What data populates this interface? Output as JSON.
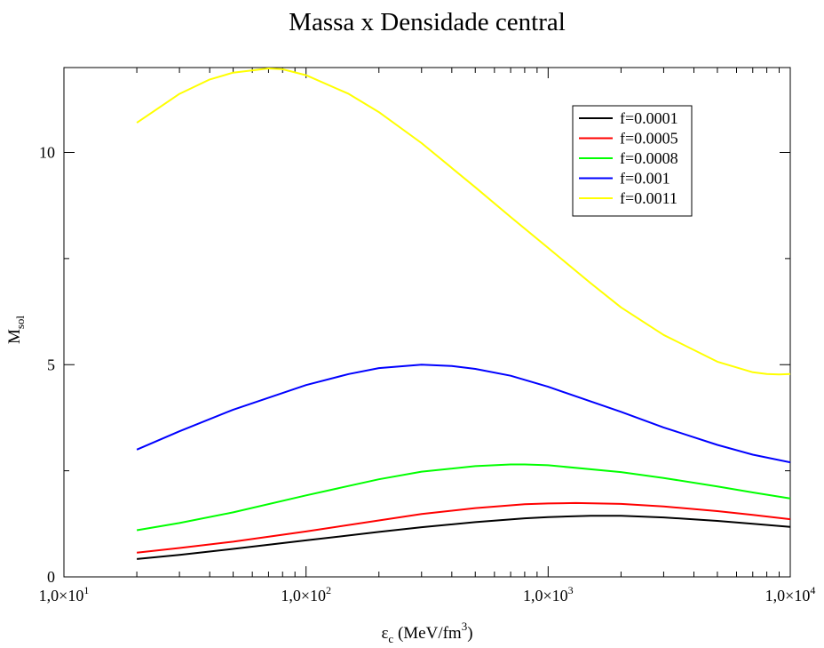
{
  "chart_data": {
    "type": "line",
    "title": "Massa x Densidade central",
    "xlabel": {
      "base": "ε",
      "sub": "c",
      "rest": " (MeV/fm",
      "sup": "3",
      "close": ")"
    },
    "ylabel": {
      "base": "M",
      "sub": "sol"
    },
    "x_scale": "log",
    "xlim": [
      10,
      10000
    ],
    "ylim": [
      0,
      12
    ],
    "x_ticks": [
      {
        "value": 10,
        "mant": "1,0×10",
        "exp": "1"
      },
      {
        "value": 100,
        "mant": "1,0×10",
        "exp": "2"
      },
      {
        "value": 1000,
        "mant": "1,0×10",
        "exp": "3"
      },
      {
        "value": 10000,
        "mant": "1,0×10",
        "exp": "4"
      }
    ],
    "y_ticks": [
      {
        "value": 0,
        "label": "0"
      },
      {
        "value": 5,
        "label": "5"
      },
      {
        "value": 10,
        "label": "10"
      }
    ],
    "y_minor_ticks": [
      2.5,
      7.5
    ],
    "grid": false,
    "legend_position": "top-right",
    "series": [
      {
        "name": "f=0.0001",
        "color": "#000000",
        "x": [
          20,
          30,
          50,
          100,
          200,
          300,
          500,
          800,
          1000,
          1500,
          2000,
          3000,
          5000,
          7000,
          10000
        ],
        "y": [
          0.42,
          0.52,
          0.66,
          0.86,
          1.06,
          1.17,
          1.29,
          1.38,
          1.41,
          1.44,
          1.44,
          1.4,
          1.32,
          1.25,
          1.18
        ]
      },
      {
        "name": "f=0.0005",
        "color": "#ff0000",
        "x": [
          20,
          30,
          50,
          100,
          200,
          300,
          500,
          800,
          1000,
          1300,
          2000,
          3000,
          5000,
          7000,
          10000
        ],
        "y": [
          0.57,
          0.68,
          0.83,
          1.07,
          1.33,
          1.48,
          1.62,
          1.71,
          1.73,
          1.74,
          1.72,
          1.66,
          1.55,
          1.46,
          1.36
        ]
      },
      {
        "name": "f=0.0008",
        "color": "#00ff00",
        "x": [
          20,
          30,
          50,
          100,
          200,
          300,
          500,
          700,
          800,
          1000,
          2000,
          3000,
          5000,
          7000,
          10000
        ],
        "y": [
          1.1,
          1.27,
          1.52,
          1.92,
          2.3,
          2.48,
          2.61,
          2.65,
          2.65,
          2.63,
          2.47,
          2.33,
          2.13,
          1.99,
          1.85
        ]
      },
      {
        "name": "f=0.001",
        "color": "#0000ff",
        "x": [
          20,
          30,
          50,
          100,
          150,
          200,
          300,
          400,
          500,
          700,
          1000,
          2000,
          3000,
          5000,
          7000,
          10000
        ],
        "y": [
          3.0,
          3.43,
          3.94,
          4.52,
          4.78,
          4.92,
          5.0,
          4.97,
          4.9,
          4.74,
          4.48,
          3.89,
          3.52,
          3.11,
          2.88,
          2.7
        ]
      },
      {
        "name": "f=0.0011",
        "color": "#ffff00",
        "x": [
          20,
          30,
          40,
          50,
          70,
          80,
          100,
          150,
          200,
          300,
          500,
          700,
          1000,
          1500,
          2000,
          3000,
          5000,
          7000,
          8000,
          9000,
          10000
        ],
        "y": [
          10.7,
          11.38,
          11.72,
          11.88,
          11.98,
          11.96,
          11.82,
          11.38,
          10.95,
          10.22,
          9.18,
          8.48,
          7.75,
          6.92,
          6.35,
          5.7,
          5.07,
          4.82,
          4.78,
          4.77,
          4.78
        ]
      }
    ]
  }
}
